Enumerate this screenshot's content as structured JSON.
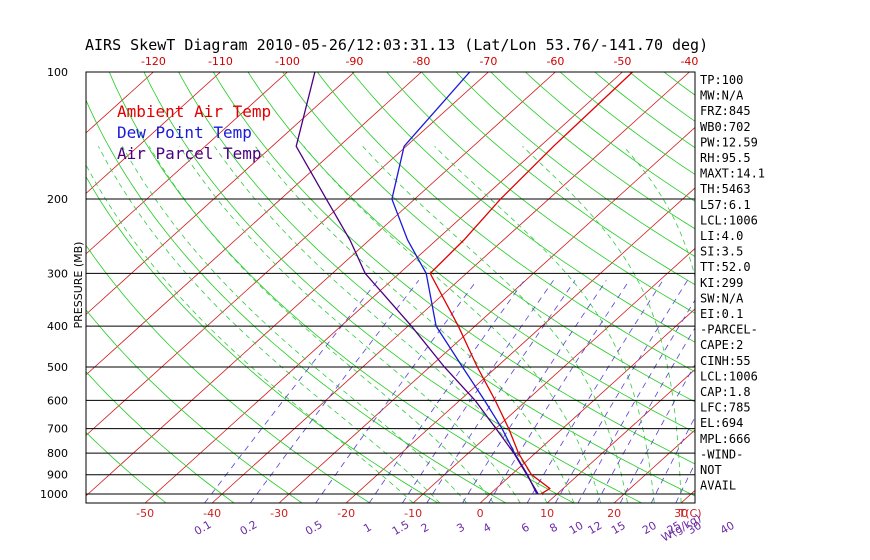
{
  "colors": {
    "ambient": "#e00000",
    "dewpoint": "#1a1ad8",
    "parcel": "#4b0082",
    "isotherm": "#d01818",
    "dry_adiabat": "#22cc22",
    "moist_adiabat": "#2ecc40",
    "mixing_ratio": "#5a3fd0",
    "axis_top": "#d00000",
    "axis_bottom": "#cc2222",
    "mixing_label": "#6a2aa8"
  },
  "chart_data": {
    "type": "line",
    "title": "AIRS SkewT Diagram 2010-05-26/12:03:31.13 (Lat/Lon 53.76/-141.70 deg)",
    "ylabel": "PRESSURE (MB)",
    "xlabel": "T(C)",
    "mixing_ratio_label": "W(g/kg)",
    "y_scale": "log",
    "ylim": [
      1050,
      100
    ],
    "pressure_ticks": [
      "100",
      "200",
      "300",
      "400",
      "500",
      "600",
      "700",
      "800",
      "900",
      "1000"
    ],
    "top_temp_ticks": [
      "-120",
      "-110",
      "-100",
      "-90",
      "-80",
      "-70",
      "-60",
      "-50",
      "-40"
    ],
    "bottom_temp_ticks": [
      "-50",
      "-40",
      "-30",
      "-20",
      "-10",
      "0",
      "10",
      "20",
      "30"
    ],
    "mixing_ratio_ticks": [
      "0.1",
      "0.2",
      "0.5",
      "1",
      "1.5",
      "2",
      "3",
      "4",
      "6",
      "8",
      "10",
      "12",
      "15",
      "20",
      "25",
      "30",
      "40"
    ],
    "legend": [
      "Ambient Air Temp",
      "Dew Point Temp",
      "Air Parcel Temp"
    ],
    "series": [
      {
        "name": "Ambient Air Temp",
        "points": [
          [
            1000,
            7.6
          ],
          [
            970,
            8.0
          ],
          [
            900,
            3.0
          ],
          [
            800,
            -2.5
          ],
          [
            700,
            -8.0
          ],
          [
            600,
            -14.7
          ],
          [
            500,
            -22.9
          ],
          [
            400,
            -32.5
          ],
          [
            300,
            -45.4
          ],
          [
            250,
            -45.9
          ],
          [
            200,
            -47.2
          ],
          [
            150,
            -48.0
          ],
          [
            100,
            -48.5
          ]
        ]
      },
      {
        "name": "Dew Point Temp",
        "points": [
          [
            1000,
            7.0
          ],
          [
            900,
            2.4
          ],
          [
            800,
            -3.1
          ],
          [
            700,
            -9.0
          ],
          [
            600,
            -16.3
          ],
          [
            500,
            -25.1
          ],
          [
            400,
            -35.8
          ],
          [
            300,
            -46.0
          ],
          [
            250,
            -54.3
          ],
          [
            200,
            -63.4
          ],
          [
            150,
            -70.3
          ],
          [
            100,
            -72.8
          ]
        ]
      },
      {
        "name": "Air Parcel Temp",
        "points": [
          [
            1000,
            7.2
          ],
          [
            900,
            2.3
          ],
          [
            800,
            -3.2
          ],
          [
            700,
            -9.9
          ],
          [
            600,
            -17.7
          ],
          [
            500,
            -27.8
          ],
          [
            400,
            -39.5
          ],
          [
            300,
            -55.1
          ],
          [
            250,
            -62.9
          ],
          [
            200,
            -73.2
          ],
          [
            150,
            -86.4
          ],
          [
            100,
            -95.9
          ]
        ]
      }
    ]
  },
  "stats": [
    "TP:100",
    "MW:N/A",
    "FRZ:845",
    "WB0:702",
    "PW:12.59",
    "RH:95.5",
    "MAXT:14.1",
    "TH:5463",
    "L57:6.1",
    "LCL:1006",
    "LI:4.0",
    "SI:3.5",
    "TT:52.0",
    "KI:299",
    "SW:N/A",
    "EI:0.1",
    "-PARCEL-",
    "CAPE:2",
    "CINH:55",
    "LCL:1006",
    "CAP:1.8",
    "LFC:785",
    "EL:694",
    "MPL:666",
    "-WIND-",
    "NOT",
    "AVAIL"
  ]
}
